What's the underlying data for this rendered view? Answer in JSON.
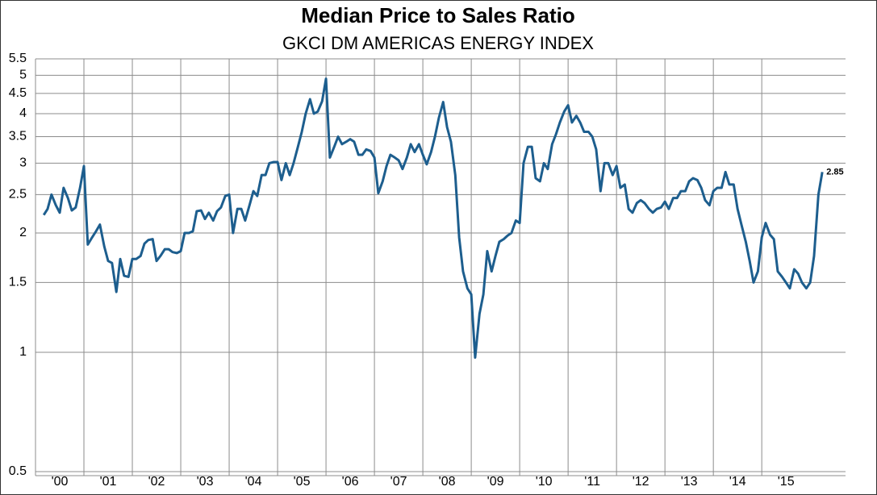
{
  "chart_data": {
    "type": "line",
    "title": "Median Price to Sales Ratio",
    "subtitle": "GKCI DM AMERICAS ENERGY INDEX",
    "color": "#1d5e8e",
    "yscale": "log",
    "grid": true,
    "label_last": true,
    "ylim": [
      0.5,
      5.5
    ],
    "yticks": [
      0.5,
      1,
      1.5,
      2,
      2.5,
      3,
      3.5,
      4,
      4.5,
      5,
      5.5
    ],
    "xlim": [
      2000,
      2016.73
    ],
    "xticks": [
      {
        "value": 2000,
        "label": "'00"
      },
      {
        "value": 2001,
        "label": "'01"
      },
      {
        "value": 2002,
        "label": "'02"
      },
      {
        "value": 2003,
        "label": "'03"
      },
      {
        "value": 2004,
        "label": "'04"
      },
      {
        "value": 2005,
        "label": "'05"
      },
      {
        "value": 2006,
        "label": "'06"
      },
      {
        "value": 2007,
        "label": "'07"
      },
      {
        "value": 2008,
        "label": "'08"
      },
      {
        "value": 2009,
        "label": "'09"
      },
      {
        "value": 2010,
        "label": "'10"
      },
      {
        "value": 2011,
        "label": "'11"
      },
      {
        "value": 2012,
        "label": "'12"
      },
      {
        "value": 2013,
        "label": "'13"
      },
      {
        "value": 2014,
        "label": "'14"
      },
      {
        "value": 2015,
        "label": "'15"
      }
    ],
    "x": [
      2000.17,
      2000.25,
      2000.33,
      2000.42,
      2000.5,
      2000.58,
      2000.67,
      2000.75,
      2000.83,
      2000.92,
      2001,
      2001.08,
      2001.17,
      2001.25,
      2001.33,
      2001.42,
      2001.5,
      2001.58,
      2001.67,
      2001.75,
      2001.83,
      2001.92,
      2002,
      2002.08,
      2002.17,
      2002.25,
      2002.33,
      2002.42,
      2002.5,
      2002.58,
      2002.67,
      2002.75,
      2002.83,
      2002.92,
      2003,
      2003.08,
      2003.17,
      2003.25,
      2003.33,
      2003.42,
      2003.5,
      2003.58,
      2003.67,
      2003.75,
      2003.83,
      2003.92,
      2004,
      2004.08,
      2004.17,
      2004.25,
      2004.33,
      2004.42,
      2004.5,
      2004.58,
      2004.67,
      2004.75,
      2004.83,
      2004.92,
      2005,
      2005.08,
      2005.17,
      2005.25,
      2005.33,
      2005.42,
      2005.5,
      2005.58,
      2005.67,
      2005.75,
      2005.83,
      2005.92,
      2006,
      2006.08,
      2006.17,
      2006.25,
      2006.33,
      2006.42,
      2006.5,
      2006.58,
      2006.67,
      2006.75,
      2006.83,
      2006.92,
      2007,
      2007.08,
      2007.17,
      2007.25,
      2007.33,
      2007.42,
      2007.5,
      2007.58,
      2007.67,
      2007.75,
      2007.83,
      2007.92,
      2008,
      2008.08,
      2008.17,
      2008.25,
      2008.33,
      2008.42,
      2008.5,
      2008.58,
      2008.67,
      2008.75,
      2008.83,
      2008.92,
      2009,
      2009.08,
      2009.17,
      2009.25,
      2009.33,
      2009.42,
      2009.5,
      2009.58,
      2009.67,
      2009.75,
      2009.83,
      2009.92,
      2010,
      2010.08,
      2010.17,
      2010.25,
      2010.33,
      2010.42,
      2010.5,
      2010.58,
      2010.67,
      2010.75,
      2010.83,
      2010.92,
      2011,
      2011.08,
      2011.17,
      2011.25,
      2011.33,
      2011.42,
      2011.5,
      2011.58,
      2011.67,
      2011.75,
      2011.83,
      2011.92,
      2012,
      2012.08,
      2012.17,
      2012.25,
      2012.33,
      2012.42,
      2012.5,
      2012.58,
      2012.67,
      2012.75,
      2012.83,
      2012.92,
      2013,
      2013.08,
      2013.17,
      2013.25,
      2013.33,
      2013.42,
      2013.5,
      2013.58,
      2013.67,
      2013.75,
      2013.83,
      2013.92,
      2014,
      2014.08,
      2014.17,
      2014.25,
      2014.33,
      2014.42,
      2014.5,
      2014.58,
      2014.67,
      2014.75,
      2014.83,
      2014.92,
      2015,
      2015.08,
      2015.17,
      2015.25,
      2015.33,
      2015.42,
      2015.5,
      2015.58,
      2015.67,
      2015.75,
      2015.83,
      2015.92,
      2016,
      2016.08,
      2016.17,
      2016.25
    ],
    "values": [
      2.22,
      2.3,
      2.5,
      2.35,
      2.25,
      2.6,
      2.45,
      2.28,
      2.32,
      2.6,
      2.95,
      1.87,
      1.95,
      2.02,
      2.1,
      1.85,
      1.7,
      1.68,
      1.42,
      1.72,
      1.56,
      1.55,
      1.72,
      1.72,
      1.75,
      1.88,
      1.92,
      1.93,
      1.7,
      1.75,
      1.82,
      1.82,
      1.79,
      1.78,
      1.8,
      2.0,
      2.0,
      2.02,
      2.27,
      2.28,
      2.17,
      2.25,
      2.15,
      2.27,
      2.32,
      2.48,
      2.5,
      2.0,
      2.3,
      2.3,
      2.15,
      2.35,
      2.55,
      2.48,
      2.8,
      2.8,
      3.0,
      3.02,
      3.02,
      2.72,
      3.0,
      2.8,
      3.0,
      3.3,
      3.6,
      4.0,
      4.35,
      4.0,
      4.05,
      4.3,
      4.9,
      3.1,
      3.3,
      3.5,
      3.35,
      3.4,
      3.45,
      3.4,
      3.15,
      3.15,
      3.25,
      3.22,
      3.1,
      2.52,
      2.7,
      2.95,
      3.15,
      3.1,
      3.05,
      2.9,
      3.1,
      3.35,
      3.2,
      3.35,
      3.15,
      2.98,
      3.2,
      3.5,
      3.9,
      4.28,
      3.7,
      3.4,
      2.8,
      1.95,
      1.6,
      1.45,
      1.4,
      0.97,
      1.25,
      1.4,
      1.8,
      1.6,
      1.75,
      1.9,
      1.93,
      1.97,
      2.0,
      2.15,
      2.12,
      3.0,
      3.3,
      3.3,
      2.75,
      2.7,
      3.0,
      2.9,
      3.35,
      3.55,
      3.8,
      4.05,
      4.2,
      3.8,
      3.95,
      3.8,
      3.6,
      3.6,
      3.5,
      3.25,
      2.55,
      3.0,
      3.0,
      2.8,
      2.95,
      2.6,
      2.65,
      2.3,
      2.25,
      2.38,
      2.42,
      2.38,
      2.3,
      2.25,
      2.3,
      2.32,
      2.4,
      2.3,
      2.45,
      2.45,
      2.55,
      2.55,
      2.7,
      2.75,
      2.72,
      2.6,
      2.42,
      2.35,
      2.55,
      2.6,
      2.6,
      2.85,
      2.65,
      2.65,
      2.3,
      2.1,
      1.9,
      1.7,
      1.5,
      1.6,
      1.95,
      2.12,
      1.98,
      1.93,
      1.6,
      1.55,
      1.5,
      1.45,
      1.62,
      1.58,
      1.5,
      1.45,
      1.5,
      1.75,
      2.5,
      2.85
    ]
  }
}
